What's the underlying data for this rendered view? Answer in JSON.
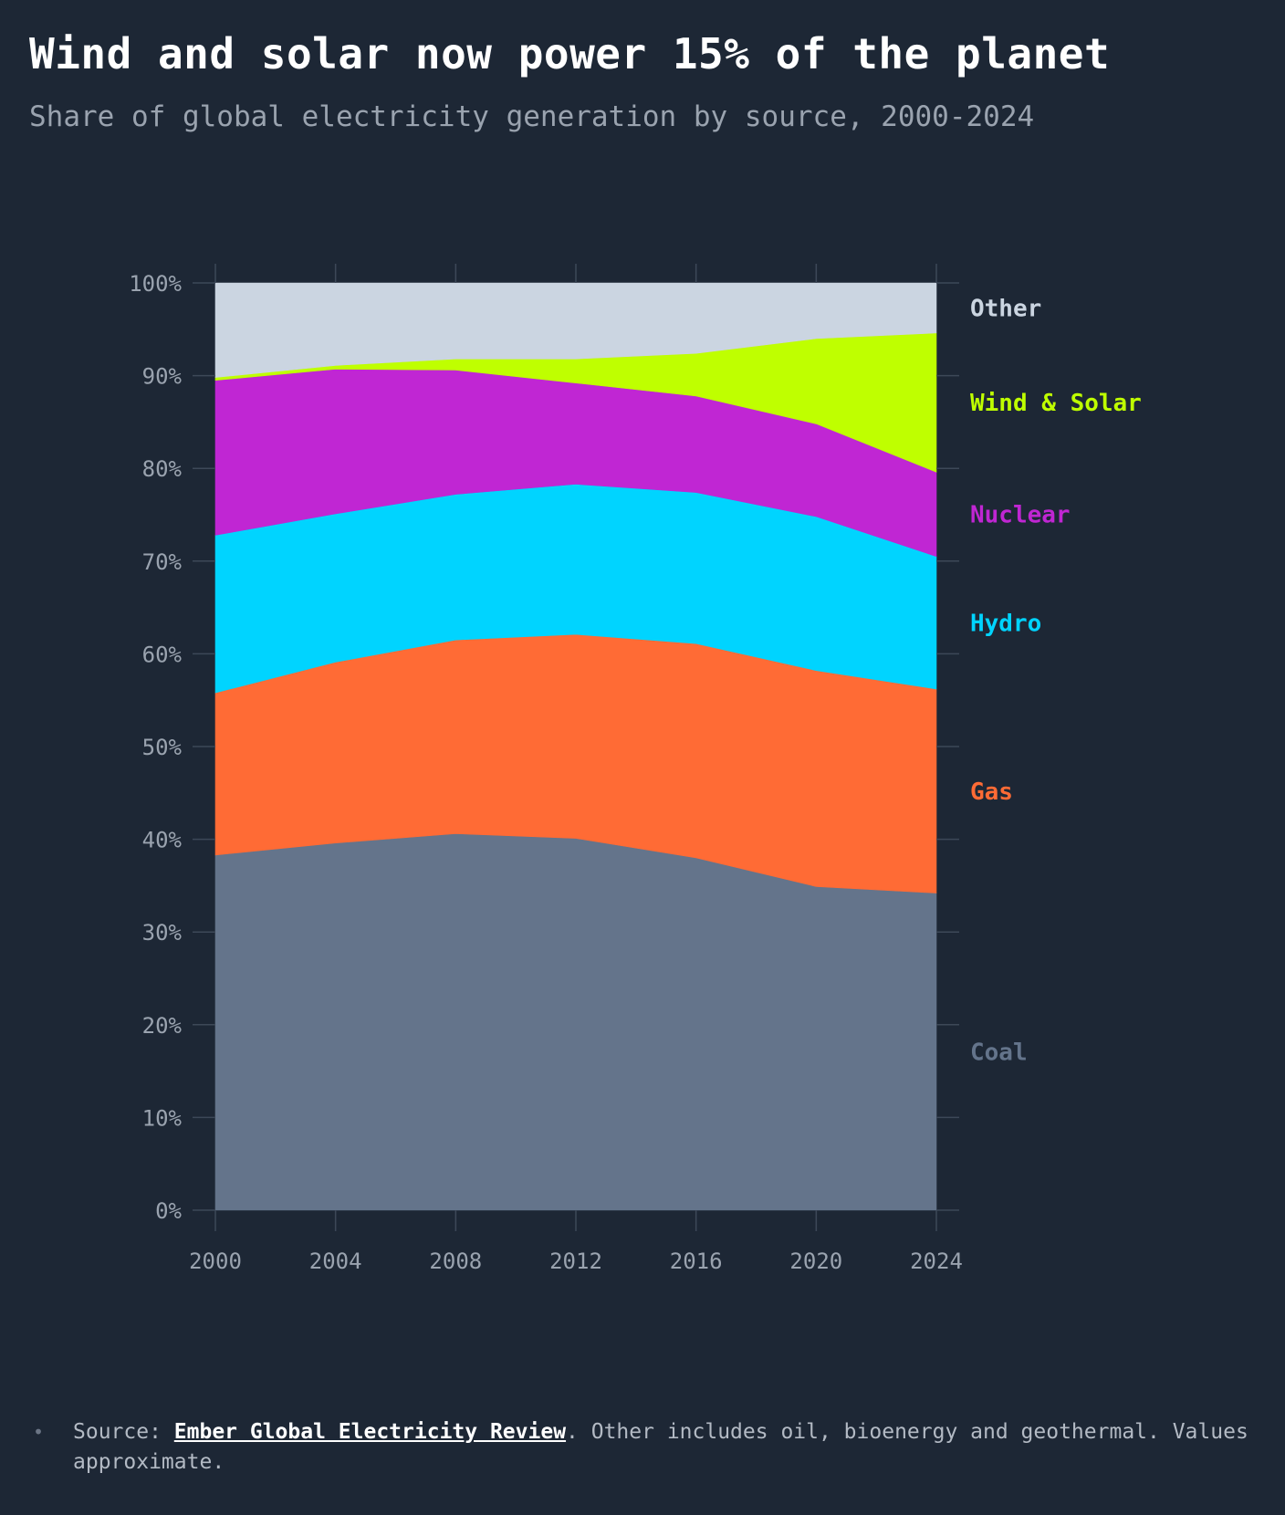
{
  "header": {
    "title": "Wind and solar now power 15% of the planet",
    "subtitle": "Share of global electricity generation by source, 2000-2024"
  },
  "chart_data": {
    "type": "area",
    "stacked": true,
    "x": [
      2000,
      2004,
      2008,
      2012,
      2016,
      2020,
      2024
    ],
    "xlabel": "",
    "ylabel": "",
    "ylim": [
      0,
      100
    ],
    "y_ticks": [
      "0%",
      "10%",
      "20%",
      "30%",
      "40%",
      "50%",
      "60%",
      "70%",
      "80%",
      "90%",
      "100%"
    ],
    "x_ticks": [
      "2000",
      "2004",
      "2008",
      "2012",
      "2016",
      "2020",
      "2024"
    ],
    "grid": false,
    "legend": "direct labels at right",
    "series": [
      {
        "name": "Coal",
        "color": "#64748b",
        "values": [
          38.3,
          39.6,
          40.6,
          40.1,
          38.0,
          34.9,
          34.2
        ]
      },
      {
        "name": "Gas",
        "color": "#ff6b35",
        "values": [
          17.5,
          19.5,
          20.9,
          22.0,
          23.1,
          23.3,
          22.0
        ]
      },
      {
        "name": "Hydro",
        "color": "#00d4ff",
        "values": [
          17.0,
          16.0,
          15.7,
          16.2,
          16.3,
          16.6,
          14.3
        ]
      },
      {
        "name": "Nuclear",
        "color": "#c026d3",
        "values": [
          16.7,
          15.6,
          13.4,
          10.9,
          10.4,
          10.0,
          9.1
        ]
      },
      {
        "name": "Wind & Solar",
        "color": "#bfff00",
        "values": [
          0.3,
          0.4,
          1.2,
          2.6,
          4.6,
          9.2,
          15.0
        ]
      },
      {
        "name": "Other",
        "color": "#cbd5e1",
        "values": [
          10.2,
          8.9,
          8.2,
          8.2,
          7.6,
          6.0,
          5.4
        ]
      }
    ]
  },
  "footnote": {
    "prefix": "Source: ",
    "link_text": "Ember Global Electricity Review",
    "suffix": ". Other includes oil, bioenergy and geothermal. Values approximate.",
    "bullet": "•"
  }
}
